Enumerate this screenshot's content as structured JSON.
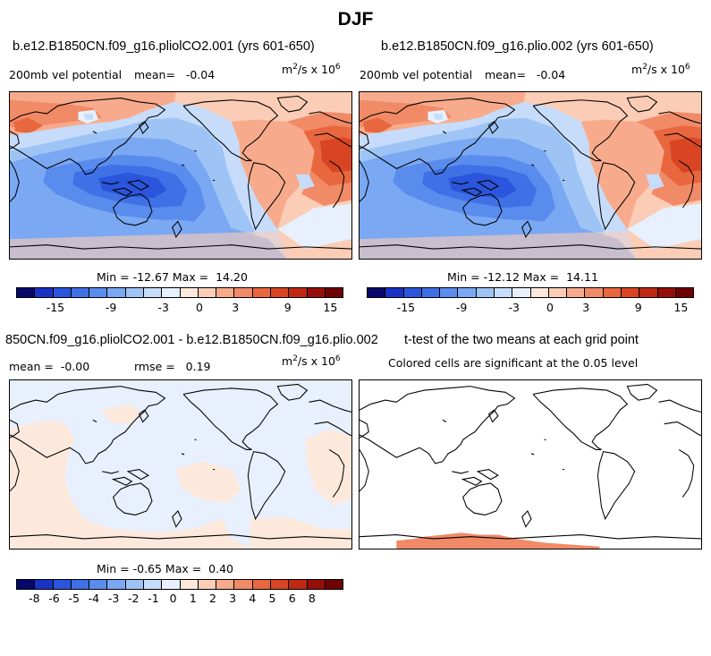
{
  "page_title": "DJF",
  "panels": [
    {
      "title": "b.e12.B1850CN.f09_g16.pliolCO2.001 (yrs 601-650)",
      "variable": "200mb vel potential",
      "stat": "mean=   -0.04",
      "units_base": "m",
      "units_exp1": "2",
      "units_mid": "/s x 10",
      "units_exp2": "6",
      "minmax": "Min = -12.67 Max =  14.20"
    },
    {
      "title": "b.e12.B1850CN.f09_g16.plio.002 (yrs 601-650)",
      "variable": "200mb vel potential",
      "stat": "mean=   -0.04",
      "units_base": "m",
      "units_exp1": "2",
      "units_mid": "/s x 10",
      "units_exp2": "6",
      "minmax": "Min = -12.12 Max =  14.11"
    },
    {
      "title": "850CN.f09_g16.pliolCO2.001 - b.e12.B1850CN.f09_g16.plio.002",
      "stat": "mean =  -0.00",
      "rmse": "rmse =   0.19",
      "units_base": "m",
      "units_exp1": "2",
      "units_mid": "/s x 10",
      "units_exp2": "6",
      "minmax": "Min = -0.65 Max =  0.40"
    },
    {
      "title": "t-test of the two means at each grid point",
      "subtitle": "Colored cells are significant at the 0.05 level"
    }
  ],
  "colorbars": {
    "main": {
      "colors": [
        "#08086b",
        "#1833c4",
        "#2a55dc",
        "#3f70e6",
        "#5a8cee",
        "#7aa8f2",
        "#9ec4f6",
        "#c6dcfa",
        "#e7f0fc",
        "#fde9dc",
        "#fbcdb6",
        "#f7ab8c",
        "#f18a66",
        "#e9673e",
        "#d94522",
        "#bf2813",
        "#960e09",
        "#6e0304"
      ],
      "labels": [
        "-15",
        "-9",
        "-3",
        "0",
        "3",
        "9",
        "15"
      ]
    },
    "diff": {
      "colors": [
        "#08086b",
        "#1833c4",
        "#2a55dc",
        "#3f70e6",
        "#5a8cee",
        "#7aa8f2",
        "#9ec4f6",
        "#c6dcfa",
        "#e7f0fc",
        "#fde9dc",
        "#fbcdb6",
        "#f7ab8c",
        "#f18a66",
        "#e9673e",
        "#d94522",
        "#bf2813",
        "#960e09",
        "#6e0304"
      ],
      "labels": [
        "-8",
        "-6",
        "-5",
        "-4",
        "-3",
        "-2",
        "-1",
        "0",
        "1",
        "2",
        "3",
        "4",
        "5",
        "6",
        "8"
      ]
    }
  },
  "chart_data": [
    {
      "type": "heatmap",
      "title": "b.e12.B1850CN.f09_g16.pliolCO2.001 (yrs 601-650)",
      "variable": "200mb vel potential",
      "units": "m^2/s x 10^6",
      "mean": -0.04,
      "min": -12.67,
      "max": 14.2
    },
    {
      "type": "heatmap",
      "title": "b.e12.B1850CN.f09_g16.plio.002 (yrs 601-650)",
      "variable": "200mb vel potential",
      "units": "m^2/s x 10^6",
      "mean": -0.04,
      "min": -12.12,
      "max": 14.11
    },
    {
      "type": "heatmap",
      "title": "850CN.f09_g16.pliolCO2.001 - b.e12.B1850CN.f09_g16.plio.002",
      "units": "m^2/s x 10^6",
      "mean": 0.0,
      "rmse": 0.19,
      "min": -0.65,
      "max": 0.4
    },
    {
      "type": "heatmap",
      "title": "t-test of the two means at each grid point",
      "subtitle": "Colored cells are significant at the 0.05 level"
    }
  ]
}
